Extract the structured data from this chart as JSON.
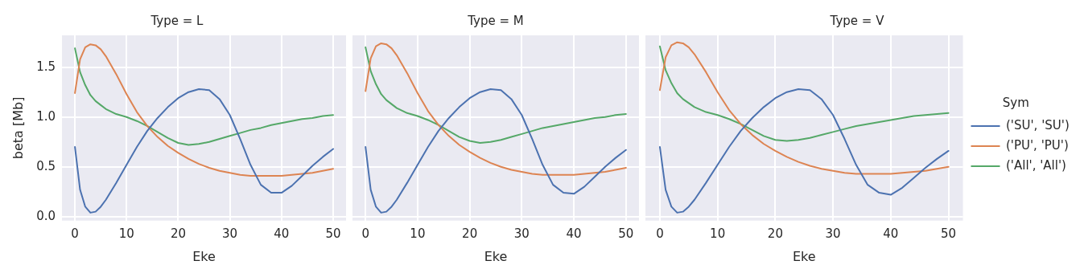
{
  "chart_data": [
    {
      "type": "line",
      "title": "Type = L",
      "xlabel": "Eke",
      "ylabel": "beta [Mb]",
      "x": [
        0,
        1,
        2,
        3,
        4,
        5,
        6,
        8,
        10,
        12,
        14,
        16,
        18,
        20,
        22,
        24,
        26,
        28,
        30,
        32,
        34,
        36,
        38,
        40,
        42,
        44,
        46,
        48,
        50
      ],
      "xlim": [
        -2.5,
        52.5
      ],
      "xticks": [
        0,
        10,
        20,
        30,
        40,
        50
      ],
      "ylim": [
        -0.04,
        1.82
      ],
      "yticks": [
        {
          "value": 0,
          "label": "0.0"
        },
        0.5,
        {
          "value": 1,
          "label": "1.0"
        },
        1.5
      ],
      "grid": true,
      "legend": false,
      "line_style": "solid",
      "marker": "none",
      "series": [
        {
          "color": "#4c72b0",
          "values": [
            0.7,
            0.27,
            0.1,
            0.04,
            0.05,
            0.1,
            0.17,
            0.34,
            0.52,
            0.7,
            0.86,
            0.99,
            1.1,
            1.19,
            1.25,
            1.28,
            1.27,
            1.18,
            1.02,
            0.78,
            0.52,
            0.32,
            0.24,
            0.24,
            0.31,
            0.41,
            0.51,
            0.6,
            0.68
          ]
        },
        {
          "color": "#dd8452",
          "values": [
            1.24,
            1.58,
            1.7,
            1.73,
            1.72,
            1.68,
            1.61,
            1.43,
            1.23,
            1.05,
            0.91,
            0.8,
            0.71,
            0.64,
            0.58,
            0.53,
            0.49,
            0.46,
            0.44,
            0.42,
            0.41,
            0.41,
            0.41,
            0.41,
            0.42,
            0.43,
            0.44,
            0.46,
            0.48
          ]
        },
        {
          "color": "#55a868",
          "values": [
            1.69,
            1.45,
            1.32,
            1.22,
            1.16,
            1.12,
            1.08,
            1.03,
            1.0,
            0.96,
            0.91,
            0.85,
            0.79,
            0.74,
            0.72,
            0.73,
            0.75,
            0.78,
            0.81,
            0.84,
            0.87,
            0.89,
            0.92,
            0.94,
            0.96,
            0.98,
            0.99,
            1.01,
            1.02
          ]
        }
      ]
    },
    {
      "type": "line",
      "title": "Type = M",
      "xlabel": "Eke",
      "x": [
        0,
        1,
        2,
        3,
        4,
        5,
        6,
        8,
        10,
        12,
        14,
        16,
        18,
        20,
        22,
        24,
        26,
        28,
        30,
        32,
        34,
        36,
        38,
        40,
        42,
        44,
        46,
        48,
        50
      ],
      "xlim": [
        -2.5,
        52.5
      ],
      "xticks": [
        0,
        10,
        20,
        30,
        40,
        50
      ],
      "ylim": [
        -0.04,
        1.82
      ],
      "yticks": [
        0.0,
        0.5,
        1.0,
        1.5
      ],
      "tick_labels": "x",
      "grid": true,
      "legend": false,
      "line_style": "solid",
      "marker": "none",
      "series": [
        {
          "color": "#4c72b0",
          "values": [
            0.7,
            0.27,
            0.1,
            0.04,
            0.05,
            0.1,
            0.17,
            0.34,
            0.52,
            0.7,
            0.86,
            0.99,
            1.1,
            1.19,
            1.25,
            1.28,
            1.27,
            1.18,
            1.02,
            0.78,
            0.52,
            0.32,
            0.24,
            0.23,
            0.3,
            0.4,
            0.5,
            0.59,
            0.67
          ]
        },
        {
          "color": "#dd8452",
          "values": [
            1.26,
            1.59,
            1.71,
            1.74,
            1.73,
            1.69,
            1.62,
            1.44,
            1.24,
            1.06,
            0.92,
            0.81,
            0.72,
            0.65,
            0.59,
            0.54,
            0.5,
            0.47,
            0.45,
            0.43,
            0.42,
            0.42,
            0.42,
            0.42,
            0.43,
            0.44,
            0.45,
            0.47,
            0.49
          ]
        },
        {
          "color": "#55a868",
          "values": [
            1.7,
            1.46,
            1.33,
            1.23,
            1.17,
            1.13,
            1.09,
            1.04,
            1.01,
            0.97,
            0.92,
            0.86,
            0.8,
            0.76,
            0.74,
            0.75,
            0.77,
            0.8,
            0.83,
            0.86,
            0.89,
            0.91,
            0.93,
            0.95,
            0.97,
            0.99,
            1.0,
            1.02,
            1.03
          ]
        }
      ]
    },
    {
      "type": "line",
      "title": "Type = V",
      "xlabel": "Eke",
      "legend_title": "Sym",
      "x": [
        0,
        1,
        2,
        3,
        4,
        5,
        6,
        8,
        10,
        12,
        14,
        16,
        18,
        20,
        22,
        24,
        26,
        28,
        30,
        32,
        34,
        36,
        38,
        40,
        42,
        44,
        46,
        48,
        50
      ],
      "xlim": [
        -2.5,
        52.5
      ],
      "xticks": [
        0,
        10,
        20,
        30,
        40,
        50
      ],
      "ylim": [
        -0.04,
        1.82
      ],
      "yticks": [
        0.0,
        0.5,
        1.0,
        1.5
      ],
      "tick_labels": "x",
      "grid": true,
      "legend": "right",
      "line_style": "solid",
      "marker": "none",
      "series": [
        {
          "name": "('SU', 'SU')",
          "color": "#4c72b0",
          "values": [
            0.7,
            0.27,
            0.1,
            0.04,
            0.05,
            0.1,
            0.17,
            0.34,
            0.52,
            0.7,
            0.86,
            0.99,
            1.1,
            1.19,
            1.25,
            1.28,
            1.27,
            1.18,
            1.02,
            0.78,
            0.52,
            0.32,
            0.24,
            0.22,
            0.29,
            0.39,
            0.49,
            0.58,
            0.66
          ]
        },
        {
          "name": "('PU', 'PU')",
          "color": "#dd8452",
          "values": [
            1.27,
            1.6,
            1.72,
            1.75,
            1.74,
            1.7,
            1.63,
            1.45,
            1.25,
            1.07,
            0.93,
            0.82,
            0.73,
            0.66,
            0.6,
            0.55,
            0.51,
            0.48,
            0.46,
            0.44,
            0.43,
            0.43,
            0.43,
            0.43,
            0.44,
            0.45,
            0.46,
            0.48,
            0.5
          ]
        },
        {
          "name": "('All', 'All')",
          "color": "#55a868",
          "values": [
            1.71,
            1.47,
            1.34,
            1.24,
            1.18,
            1.14,
            1.1,
            1.05,
            1.02,
            0.98,
            0.93,
            0.87,
            0.81,
            0.77,
            0.76,
            0.77,
            0.79,
            0.82,
            0.85,
            0.88,
            0.91,
            0.93,
            0.95,
            0.97,
            0.99,
            1.01,
            1.02,
            1.03,
            1.04
          ]
        }
      ]
    }
  ]
}
